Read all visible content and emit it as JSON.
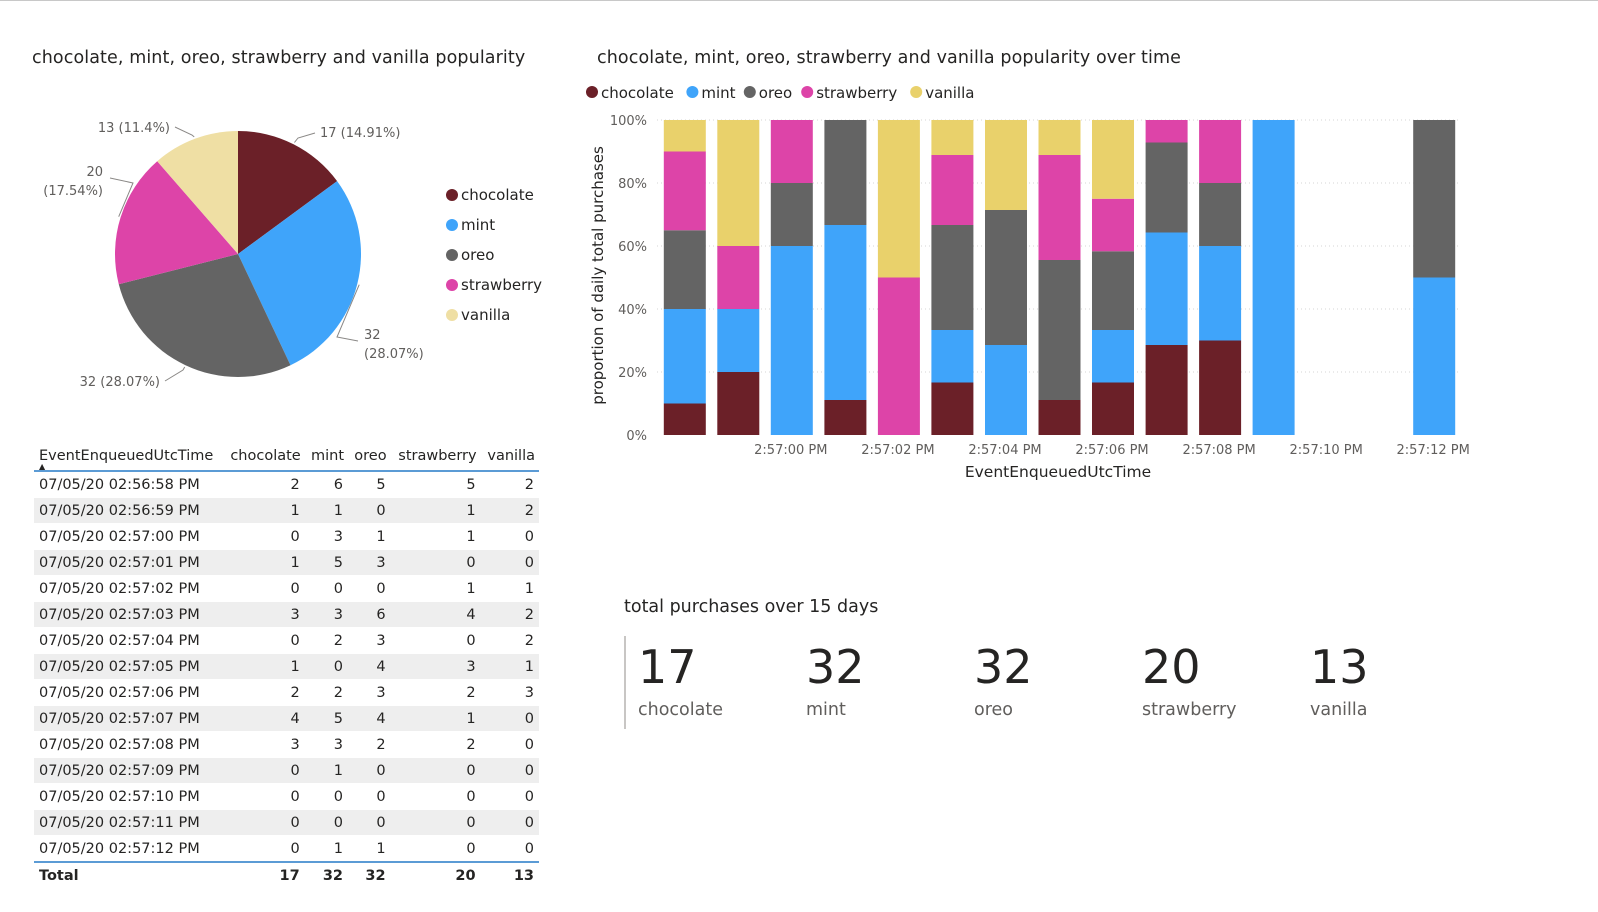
{
  "pie": {
    "title": "chocolate, mint, oreo, strawberry and vanilla popularity",
    "legend": [
      "chocolate",
      "mint",
      "oreo",
      "strawberry",
      "vanilla"
    ]
  },
  "bar": {
    "title": "chocolate, mint, oreo, strawberry and vanilla popularity over time"
  },
  "colors": {
    "chocolate": "#6b2028",
    "mint": "#3fa4fa",
    "oreo": "#646464",
    "strawberry": "#dd44a8",
    "vanilla": "#e9d16b",
    "vanilla_pie": "#efdfa4"
  },
  "chart_data": [
    {
      "type": "pie",
      "title": "chocolate, mint, oreo, strawberry and vanilla popularity",
      "labels": [
        "chocolate",
        "mint",
        "oreo",
        "strawberry",
        "vanilla"
      ],
      "values": [
        17,
        32,
        32,
        20,
        13
      ],
      "data_labels": [
        "17 (14.91%)",
        "32 (28.07%)",
        "32 (28.07%)",
        "20 (17.54%)",
        "13 (11.4%)"
      ],
      "legend_position": "right"
    },
    {
      "type": "bar",
      "stacked": "100%",
      "title": "chocolate, mint, oreo, strawberry and vanilla popularity over time",
      "xlabel": "EventEnqueuedUtcTime",
      "ylabel": "proportion of daily total purchases",
      "yticks": [
        "0%",
        "20%",
        "40%",
        "60%",
        "80%",
        "100%"
      ],
      "xticks": [
        "2:57:00 PM",
        "2:57:02 PM",
        "2:57:04 PM",
        "2:57:06 PM",
        "2:57:08 PM",
        "2:57:10 PM",
        "2:57:12 PM"
      ],
      "legend_position": "top-left",
      "categories": [
        "2:56:58 PM",
        "2:56:59 PM",
        "2:57:00 PM",
        "2:57:01 PM",
        "2:57:02 PM",
        "2:57:03 PM",
        "2:57:04 PM",
        "2:57:05 PM",
        "2:57:06 PM",
        "2:57:07 PM",
        "2:57:08 PM",
        "2:57:09 PM",
        "2:57:10 PM",
        "2:57:11 PM",
        "2:57:12 PM"
      ],
      "series": [
        {
          "name": "chocolate",
          "values": [
            2,
            1,
            0,
            1,
            0,
            3,
            0,
            1,
            2,
            4,
            3,
            0,
            0,
            0,
            0
          ]
        },
        {
          "name": "mint",
          "values": [
            6,
            1,
            3,
            5,
            0,
            3,
            2,
            0,
            2,
            5,
            3,
            1,
            0,
            0,
            1
          ]
        },
        {
          "name": "oreo",
          "values": [
            5,
            0,
            1,
            3,
            0,
            6,
            3,
            4,
            3,
            4,
            2,
            0,
            0,
            0,
            1
          ]
        },
        {
          "name": "strawberry",
          "values": [
            5,
            1,
            1,
            0,
            1,
            4,
            0,
            3,
            2,
            1,
            2,
            0,
            0,
            0,
            0
          ]
        },
        {
          "name": "vanilla",
          "values": [
            2,
            2,
            0,
            0,
            1,
            2,
            2,
            1,
            3,
            0,
            0,
            0,
            0,
            0,
            0
          ]
        }
      ],
      "grid": true
    }
  ],
  "table": {
    "headers": [
      "EventEnqueuedUtcTime",
      "chocolate",
      "mint",
      "oreo",
      "strawberry",
      "vanilla"
    ],
    "sort_indicator": "▲",
    "rows": [
      [
        "07/05/20 02:56:58 PM",
        "2",
        "6",
        "5",
        "5",
        "2"
      ],
      [
        "07/05/20 02:56:59 PM",
        "1",
        "1",
        "0",
        "1",
        "2"
      ],
      [
        "07/05/20 02:57:00 PM",
        "0",
        "3",
        "1",
        "1",
        "0"
      ],
      [
        "07/05/20 02:57:01 PM",
        "1",
        "5",
        "3",
        "0",
        "0"
      ],
      [
        "07/05/20 02:57:02 PM",
        "0",
        "0",
        "0",
        "1",
        "1"
      ],
      [
        "07/05/20 02:57:03 PM",
        "3",
        "3",
        "6",
        "4",
        "2"
      ],
      [
        "07/05/20 02:57:04 PM",
        "0",
        "2",
        "3",
        "0",
        "2"
      ],
      [
        "07/05/20 02:57:05 PM",
        "1",
        "0",
        "4",
        "3",
        "1"
      ],
      [
        "07/05/20 02:57:06 PM",
        "2",
        "2",
        "3",
        "2",
        "3"
      ],
      [
        "07/05/20 02:57:07 PM",
        "4",
        "5",
        "4",
        "1",
        "0"
      ],
      [
        "07/05/20 02:57:08 PM",
        "3",
        "3",
        "2",
        "2",
        "0"
      ],
      [
        "07/05/20 02:57:09 PM",
        "0",
        "1",
        "0",
        "0",
        "0"
      ],
      [
        "07/05/20 02:57:10 PM",
        "0",
        "0",
        "0",
        "0",
        "0"
      ],
      [
        "07/05/20 02:57:11 PM",
        "0",
        "0",
        "0",
        "0",
        "0"
      ],
      [
        "07/05/20 02:57:12 PM",
        "0",
        "1",
        "1",
        "0",
        "0"
      ]
    ],
    "total": [
      "Total",
      "17",
      "32",
      "32",
      "20",
      "13"
    ]
  },
  "cards": {
    "title": "total purchases over 15 days",
    "items": [
      {
        "value": "17",
        "label": "chocolate"
      },
      {
        "value": "32",
        "label": "mint"
      },
      {
        "value": "32",
        "label": "oreo"
      },
      {
        "value": "20",
        "label": "strawberry"
      },
      {
        "value": "13",
        "label": "vanilla"
      }
    ]
  }
}
